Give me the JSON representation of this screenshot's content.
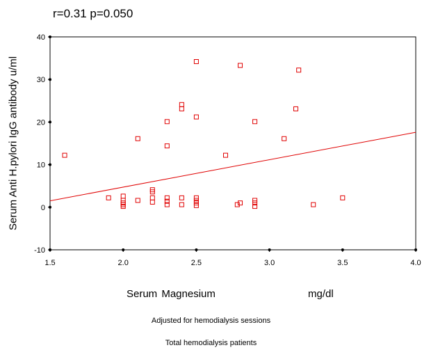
{
  "chart_data": {
    "type": "scatter",
    "title": "r=0.31 p=0.050",
    "xlabel": "Serum  Magnesium",
    "xunit": "mg/dl",
    "ylabel": "Serum Anti H.pylori IgG antibody  u/ml",
    "notes": [
      "Adjusted for hemodialysis sessions",
      "Total hemodialysis patients"
    ],
    "xlim": [
      1.5,
      4.0
    ],
    "ylim": [
      -10,
      40
    ],
    "xticks": [
      "1.5",
      "2.0",
      "2.5",
      "3.0",
      "3.5",
      "4.0"
    ],
    "yticks": [
      "-10",
      "0",
      "10",
      "20",
      "30",
      "40"
    ],
    "grid": false,
    "marker_color": "#e00000",
    "line_color": "#e00000",
    "regression_line": {
      "x": [
        1.5,
        4.0
      ],
      "y": [
        1.5,
        17.6
      ]
    },
    "points": [
      {
        "x": 1.6,
        "y": 12.2
      },
      {
        "x": 1.9,
        "y": 2.2
      },
      {
        "x": 2.0,
        "y": 2.6
      },
      {
        "x": 2.0,
        "y": 1.6
      },
      {
        "x": 2.0,
        "y": 1.0
      },
      {
        "x": 2.0,
        "y": 0.6
      },
      {
        "x": 2.0,
        "y": 0.2
      },
      {
        "x": 2.1,
        "y": 16.1
      },
      {
        "x": 2.1,
        "y": 1.6
      },
      {
        "x": 2.2,
        "y": 4.1
      },
      {
        "x": 2.2,
        "y": 3.6
      },
      {
        "x": 2.2,
        "y": 2.2
      },
      {
        "x": 2.2,
        "y": 1.2
      },
      {
        "x": 2.3,
        "y": 20.1
      },
      {
        "x": 2.3,
        "y": 14.4
      },
      {
        "x": 2.3,
        "y": 2.2
      },
      {
        "x": 2.3,
        "y": 1.4
      },
      {
        "x": 2.3,
        "y": 0.6
      },
      {
        "x": 2.4,
        "y": 24.1
      },
      {
        "x": 2.4,
        "y": 23.1
      },
      {
        "x": 2.4,
        "y": 2.2
      },
      {
        "x": 2.4,
        "y": 0.6
      },
      {
        "x": 2.5,
        "y": 34.2
      },
      {
        "x": 2.5,
        "y": 21.2
      },
      {
        "x": 2.5,
        "y": 2.2
      },
      {
        "x": 2.5,
        "y": 1.6
      },
      {
        "x": 2.5,
        "y": 1.0
      },
      {
        "x": 2.5,
        "y": 0.4
      },
      {
        "x": 2.7,
        "y": 12.2
      },
      {
        "x": 2.78,
        "y": 0.6
      },
      {
        "x": 2.8,
        "y": 33.3
      },
      {
        "x": 2.8,
        "y": 1.0
      },
      {
        "x": 2.9,
        "y": 20.1
      },
      {
        "x": 2.9,
        "y": 1.6
      },
      {
        "x": 2.9,
        "y": 1.0
      },
      {
        "x": 2.9,
        "y": 0.2
      },
      {
        "x": 3.1,
        "y": 16.1
      },
      {
        "x": 3.18,
        "y": 23.1
      },
      {
        "x": 3.2,
        "y": 32.2
      },
      {
        "x": 3.3,
        "y": 0.6
      },
      {
        "x": 3.5,
        "y": 2.2
      }
    ]
  }
}
